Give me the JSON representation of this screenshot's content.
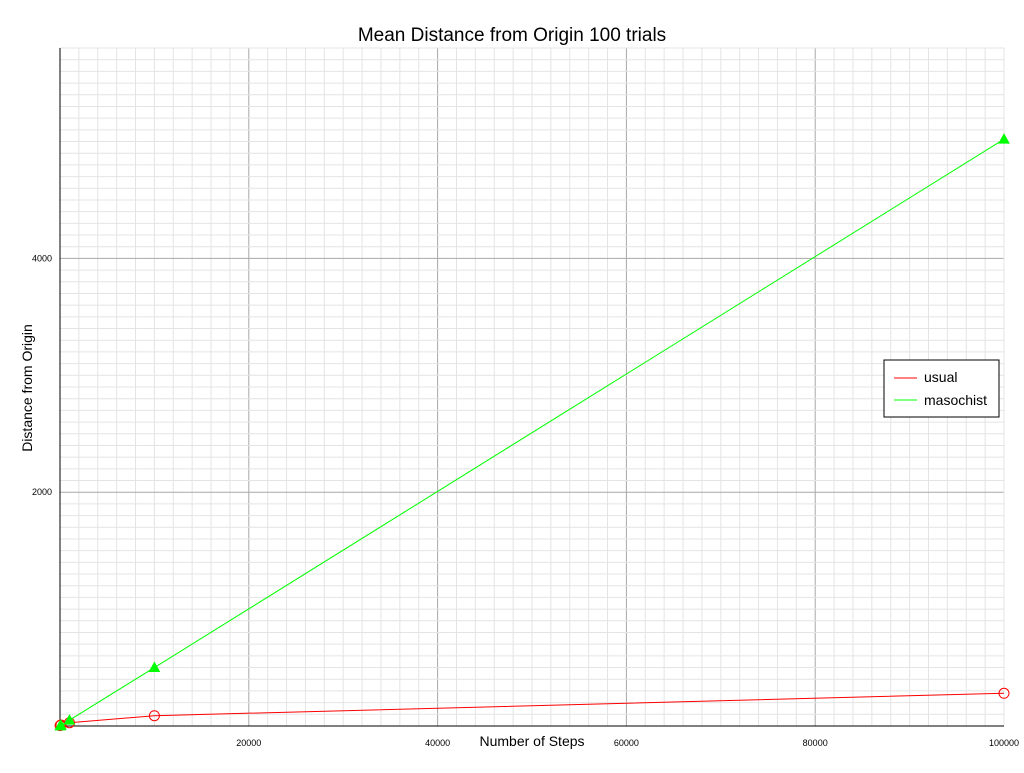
{
  "chart_data": {
    "type": "line",
    "title": "Mean Distance from Origin 100 trials",
    "xlabel": "Number of Steps",
    "ylabel": "Distance from Origin",
    "xlim": [
      0,
      100000
    ],
    "ylim": [
      0,
      5800
    ],
    "x_ticks": [
      20000,
      40000,
      60000,
      80000,
      100000
    ],
    "y_ticks": [
      2000,
      4000
    ],
    "grid": true,
    "legend_position": "right",
    "series": [
      {
        "name": "usual",
        "color": "#ff0000",
        "marker": "circle-open",
        "x": [
          10,
          100,
          1000,
          10000,
          100000
        ],
        "y": [
          3,
          9,
          28,
          88,
          280
        ]
      },
      {
        "name": "masochist",
        "color": "#00ff00",
        "marker": "triangle-filled",
        "x": [
          10,
          100,
          1000,
          10000,
          100000
        ],
        "y": [
          1,
          5,
          50,
          500,
          5020
        ]
      }
    ]
  }
}
